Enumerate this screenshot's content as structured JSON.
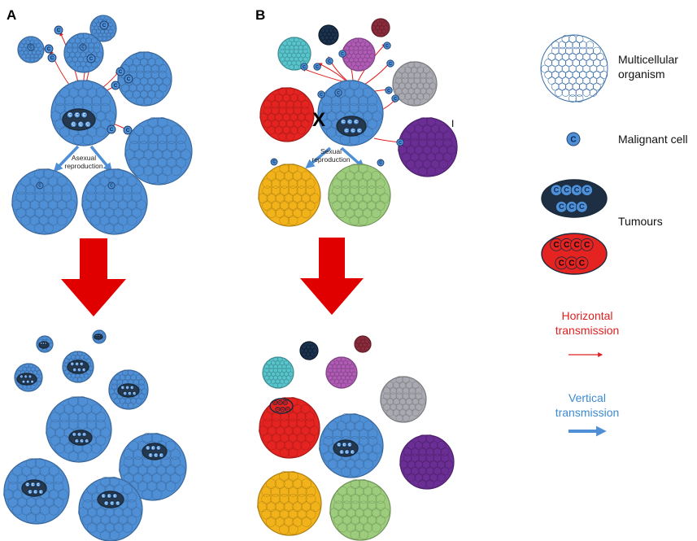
{
  "panels": {
    "a": {
      "label": "A",
      "repro_line1": "Asexual",
      "repro_line2": "reproduction"
    },
    "b": {
      "label": "B",
      "repro_line1": "Sexual",
      "repro_line2": "reproduction",
      "cross": "X",
      "mark": "I"
    }
  },
  "cell_letter": "C",
  "legend": {
    "organism_line1": "Multicellular",
    "organism_line2": "organism",
    "malignant": "Malignant cell",
    "tumours": "Tumours",
    "horizontal_line1": "Horizontal",
    "horizontal_line2": "transmission",
    "vertical_line1": "Vertical",
    "vertical_line2": "transmission"
  },
  "colors": {
    "blue": "#4f8fd6",
    "red": "#e52421",
    "teal": "#58c4cc",
    "navy": "#1c3350",
    "maroon": "#8b2b3b",
    "magenta": "#b05cb6",
    "grey": "#a9a9b1",
    "purple": "#6a2e94",
    "yellow": "#f2b21a",
    "green": "#9ccc7c",
    "arrow_red": "#e10000",
    "horizontal_text": "#e02020",
    "vertical_text": "#3b8ad0"
  }
}
